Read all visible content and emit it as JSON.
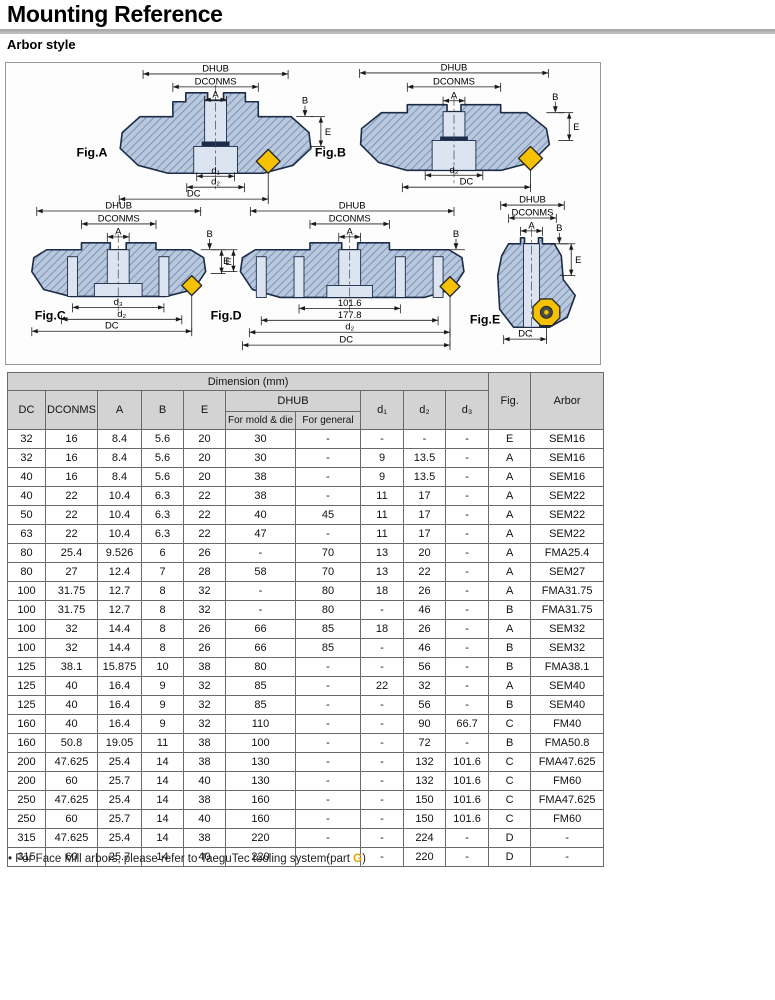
{
  "page": {
    "title": "Mounting Reference",
    "subtitle": "Arbor style"
  },
  "colors": {
    "accent_g": "#e2a30a",
    "insert_yellow": "#f5c100",
    "body_fill": "#b9c8dc",
    "hatch_line": "#6583ab",
    "outline_navy": "#1c2b47",
    "header_gray": "#d3d3d3"
  },
  "figures": [
    {
      "label": "Fig.A",
      "top_dims": [
        "DHUB",
        "DCONMS",
        "A"
      ],
      "side_dims": [
        "B",
        "E"
      ],
      "bottom_dims": [
        "d₁",
        "d₂",
        "DC"
      ]
    },
    {
      "label": "Fig.B",
      "top_dims": [
        "DHUB",
        "DCONMS",
        "A"
      ],
      "side_dims": [
        "B",
        "E"
      ],
      "bottom_dims": [
        "d₂",
        "DC"
      ]
    },
    {
      "label": "Fig.C",
      "top_dims": [
        "DHUB",
        "DCONMS",
        "A"
      ],
      "side_dims": [
        "B",
        "E"
      ],
      "bottom_dims": [
        "d₃",
        "d₂",
        "DC"
      ]
    },
    {
      "label": "Fig.D",
      "top_dims": [
        "DHUB",
        "DCONMS",
        "A"
      ],
      "side_dims": [
        "B",
        "E"
      ],
      "bottom_dims": [
        "101.6",
        "177.8",
        "d₂",
        "DC"
      ]
    },
    {
      "label": "Fig.E",
      "top_dims": [
        "DHUB",
        "DCONMS",
        "A"
      ],
      "side_dims": [
        "B",
        "E"
      ],
      "bottom_dims": [
        "DC"
      ]
    }
  ],
  "table": {
    "dimension_header": "Dimension (mm)",
    "col_headers": {
      "dc": "DC",
      "dconms": "DCONMS",
      "a": "A",
      "b": "B",
      "e": "E",
      "dhub": "DHUB",
      "dhub_mold": "For mold & die",
      "dhub_general": "For general",
      "d1": "d₁",
      "d2": "d₂",
      "d3": "d₃",
      "fig": "Fig.",
      "arbor": "Arbor"
    },
    "rows": [
      [
        "32",
        "16",
        "8.4",
        "5.6",
        "20",
        "30",
        "-",
        "-",
        "-",
        "-",
        "E",
        "SEM16"
      ],
      [
        "32",
        "16",
        "8.4",
        "5.6",
        "20",
        "30",
        "-",
        "9",
        "13.5",
        "-",
        "A",
        "SEM16"
      ],
      [
        "40",
        "16",
        "8.4",
        "5.6",
        "20",
        "38",
        "-",
        "9",
        "13.5",
        "-",
        "A",
        "SEM16"
      ],
      [
        "40",
        "22",
        "10.4",
        "6.3",
        "22",
        "38",
        "-",
        "11",
        "17",
        "-",
        "A",
        "SEM22"
      ],
      [
        "50",
        "22",
        "10.4",
        "6.3",
        "22",
        "40",
        "45",
        "11",
        "17",
        "-",
        "A",
        "SEM22"
      ],
      [
        "63",
        "22",
        "10.4",
        "6.3",
        "22",
        "47",
        "-",
        "11",
        "17",
        "-",
        "A",
        "SEM22"
      ],
      [
        "80",
        "25.4",
        "9.526",
        "6",
        "26",
        "-",
        "70",
        "13",
        "20",
        "-",
        "A",
        "FMA25.4"
      ],
      [
        "80",
        "27",
        "12.4",
        "7",
        "28",
        "58",
        "70",
        "13",
        "22",
        "-",
        "A",
        "SEM27"
      ],
      [
        "100",
        "31.75",
        "12.7",
        "8",
        "32",
        "-",
        "80",
        "18",
        "26",
        "-",
        "A",
        "FMA31.75"
      ],
      [
        "100",
        "31.75",
        "12.7",
        "8",
        "32",
        "-",
        "80",
        "-",
        "46",
        "-",
        "B",
        "FMA31.75"
      ],
      [
        "100",
        "32",
        "14.4",
        "8",
        "26",
        "66",
        "85",
        "18",
        "26",
        "-",
        "A",
        "SEM32"
      ],
      [
        "100",
        "32",
        "14.4",
        "8",
        "26",
        "66",
        "85",
        "-",
        "46",
        "-",
        "B",
        "SEM32"
      ],
      [
        "125",
        "38.1",
        "15.875",
        "10",
        "38",
        "80",
        "-",
        "-",
        "56",
        "-",
        "B",
        "FMA38.1"
      ],
      [
        "125",
        "40",
        "16.4",
        "9",
        "32",
        "85",
        "-",
        "22",
        "32",
        "-",
        "A",
        "SEM40"
      ],
      [
        "125",
        "40",
        "16.4",
        "9",
        "32",
        "85",
        "-",
        "-",
        "56",
        "-",
        "B",
        "SEM40"
      ],
      [
        "160",
        "40",
        "16.4",
        "9",
        "32",
        "110",
        "-",
        "-",
        "90",
        "66.7",
        "C",
        "FM40"
      ],
      [
        "160",
        "50.8",
        "19.05",
        "11",
        "38",
        "100",
        "-",
        "-",
        "72",
        "-",
        "B",
        "FMA50.8"
      ],
      [
        "200",
        "47.625",
        "25.4",
        "14",
        "38",
        "130",
        "-",
        "-",
        "132",
        "101.6",
        "C",
        "FMA47.625"
      ],
      [
        "200",
        "60",
        "25.7",
        "14",
        "40",
        "130",
        "-",
        "-",
        "132",
        "101.6",
        "C",
        "FM60"
      ],
      [
        "250",
        "47.625",
        "25.4",
        "14",
        "38",
        "160",
        "-",
        "-",
        "150",
        "101.6",
        "C",
        "FMA47.625"
      ],
      [
        "250",
        "60",
        "25.7",
        "14",
        "40",
        "160",
        "-",
        "-",
        "150",
        "101.6",
        "C",
        "FM60"
      ],
      [
        "315",
        "47.625",
        "25.4",
        "14",
        "38",
        "220",
        "-",
        "-",
        "224",
        "-",
        "D",
        "-"
      ],
      [
        "315",
        "60",
        "25.7",
        "14",
        "40",
        "220",
        "-",
        "-",
        "220",
        "-",
        "D",
        "-"
      ]
    ]
  },
  "footnote": {
    "bullet": "•",
    "prefix": "For Face Mill arbors, please refer to TaeguTec tooling system(part ",
    "highlight": "G",
    "suffix": ")"
  }
}
